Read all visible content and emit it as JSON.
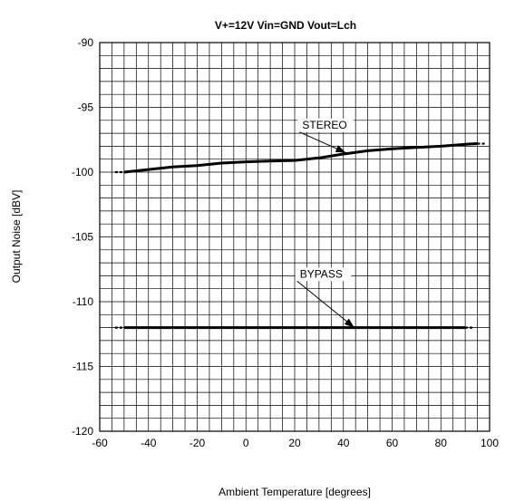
{
  "chart_data": {
    "type": "line",
    "title": "V+=12V  Vin=GND  Vout=Lch",
    "xlabel": "Ambient Temperature   [degrees]",
    "ylabel": "Output Noise   [dBV]",
    "xlim": [
      -60,
      100
    ],
    "ylim": [
      -120,
      -90
    ],
    "xticks": [
      -60,
      -40,
      -20,
      0,
      20,
      40,
      60,
      80,
      100
    ],
    "yticks": [
      -90,
      -95,
      -100,
      -105,
      -110,
      -115,
      -120
    ],
    "grid": true,
    "series": [
      {
        "name": "STEREO",
        "x": [
          -50,
          -40,
          -30,
          -20,
          -10,
          0,
          10,
          20,
          30,
          40,
          50,
          60,
          70,
          80,
          90,
          95
        ],
        "y": [
          -100,
          -99.8,
          -99.6,
          -99.5,
          -99.3,
          -99.2,
          -99.15,
          -99.1,
          -98.9,
          -98.6,
          -98.35,
          -98.2,
          -98.1,
          -98.0,
          -97.85,
          -97.8
        ]
      },
      {
        "name": "BYPASS",
        "x": [
          -50,
          90
        ],
        "y": [
          -112,
          -112
        ]
      }
    ],
    "annotations": [
      {
        "text": "STEREO",
        "label_at": [
          22,
          -96.7
        ],
        "points_to": [
          41,
          -98.5
        ]
      },
      {
        "text": "BYPASS",
        "label_at": [
          21,
          -108.2
        ],
        "points_to": [
          44.5,
          -112
        ]
      }
    ]
  }
}
